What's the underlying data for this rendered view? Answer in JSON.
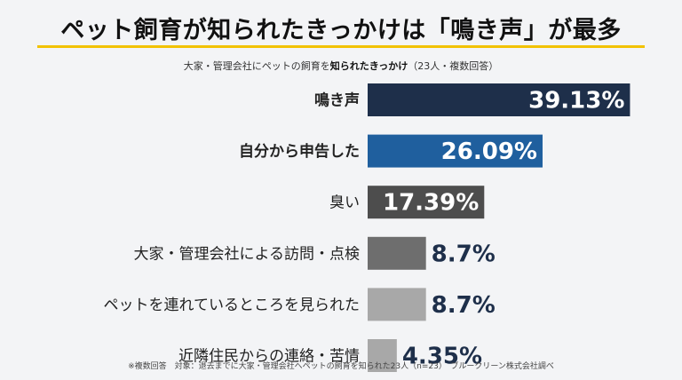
{
  "title": "ペット飼育が知られたきっかけは「鳴き声」が最多",
  "subtitle": {
    "pre": "大家・管理会社にペットの飼育を",
    "bold": "知られたきっかけ",
    "post": "（23人・複数回答）"
  },
  "footnote": "※複数回答　対象：退去までに大家・管理会社へペットの飼育を知られた23人（n=23）　ブルークリーン株式会社調べ",
  "chart_data": {
    "type": "bar",
    "orientation": "horizontal",
    "categories": [
      "鳴き声",
      "自分から申告した",
      "臭い",
      "大家・管理会社による訪問・点検",
      "ペットを連れているところを見られた",
      "近隣住民からの連絡・苦情"
    ],
    "values": [
      39.13,
      26.09,
      17.39,
      8.7,
      8.7,
      4.35
    ],
    "value_labels": [
      "39.13%",
      "26.09%",
      "17.39%",
      "8.7%",
      "8.7%",
      "4.35%"
    ],
    "bar_colors": [
      "#1e2f4a",
      "#1f5f9e",
      "#4d4d4d",
      "#6e6e6e",
      "#a8a8a8",
      "#a8a8a8"
    ],
    "bold_categories": [
      true,
      true,
      false,
      false,
      false,
      false
    ],
    "label_inside": [
      true,
      true,
      true,
      false,
      false,
      false
    ],
    "xlim": [
      0,
      40
    ],
    "grid": false,
    "legend": "none"
  }
}
